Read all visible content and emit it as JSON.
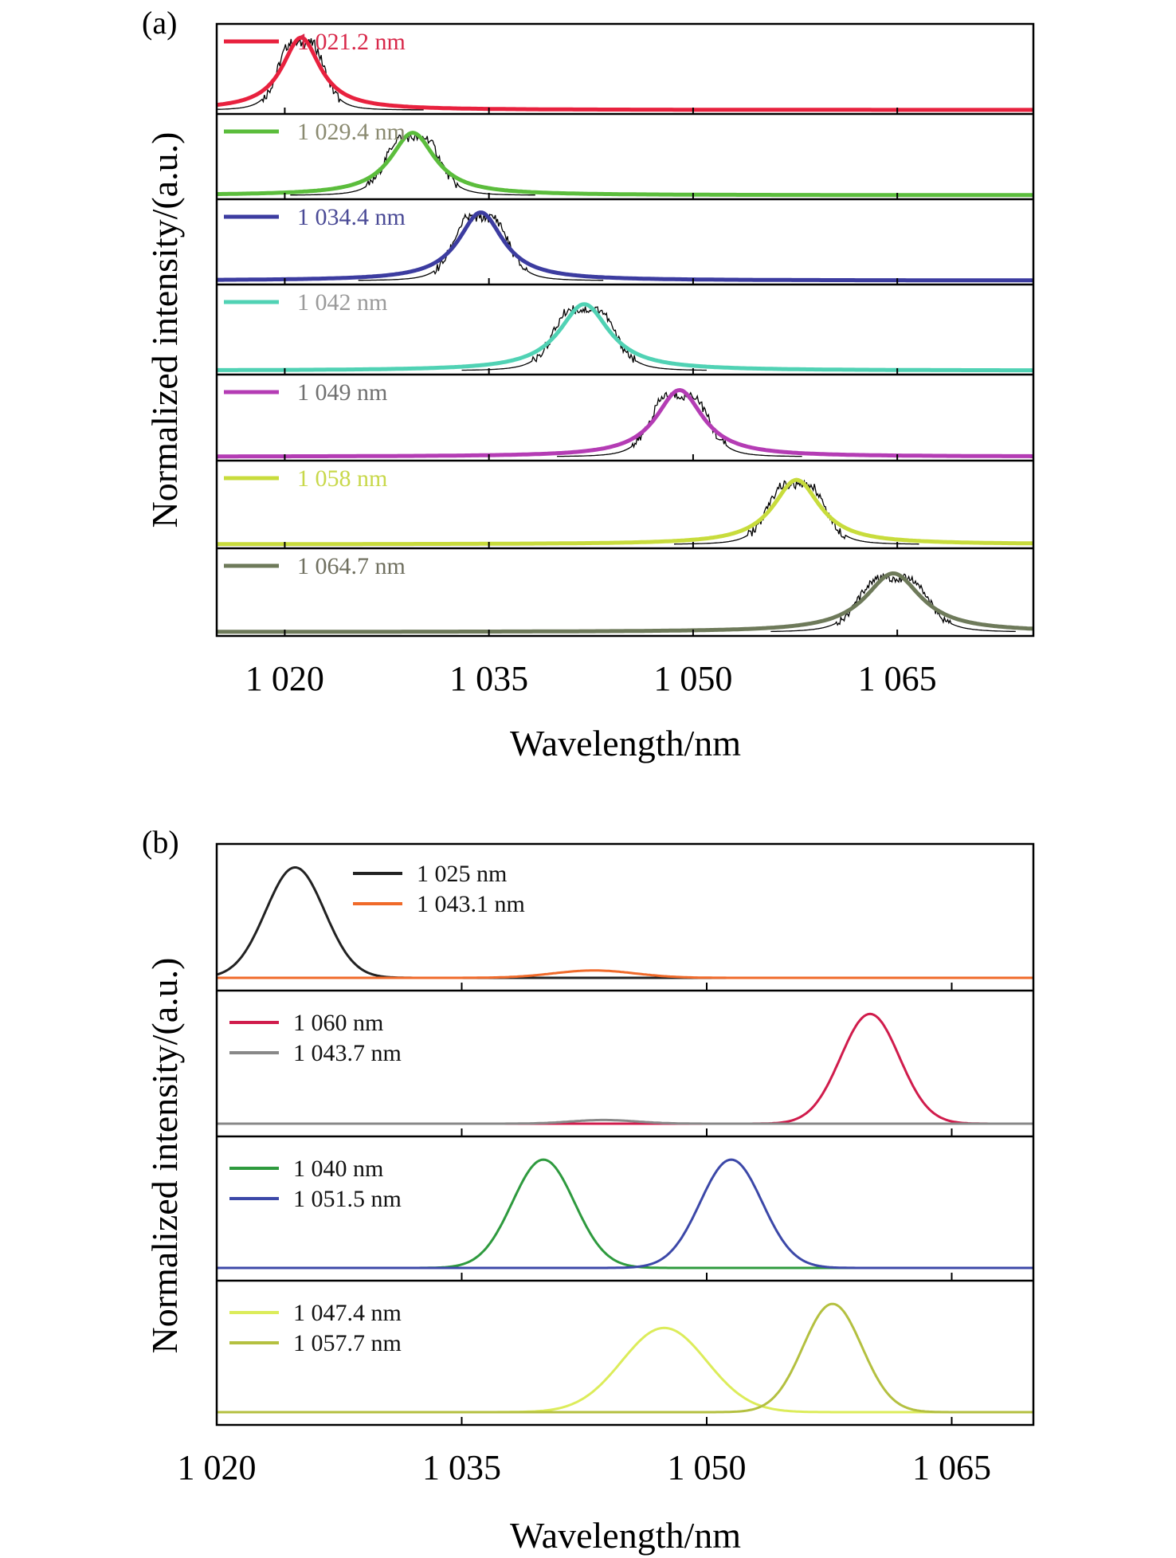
{
  "chart_data": [
    {
      "panel": "(a)",
      "type": "line",
      "xlabel": "Wavelength/nm",
      "ylabel": "Normalized intensity/(a.u.)",
      "xlim": [
        1015,
        1075
      ],
      "xticks": [
        1020,
        1035,
        1050,
        1065
      ],
      "xtick_labels": [
        "1 020",
        "1 035",
        "1 050",
        "1 065"
      ],
      "grid": false,
      "legend_position": "top-left of each strip",
      "measured_trace_color": "#000000",
      "series": [
        {
          "name": "1 021.2 nm",
          "peak": 1021.2,
          "fwhm": 3.4,
          "amplitude": 0.6,
          "color": "#e8213e",
          "text_color": "#d8284a"
        },
        {
          "name": "1 029.4 nm",
          "peak": 1029.4,
          "fwhm": 4.0,
          "amplitude": 0.55,
          "color": "#5bbd3c",
          "text_color": "#8a8a70"
        },
        {
          "name": "1 034.4 nm",
          "peak": 1034.4,
          "fwhm": 4.0,
          "amplitude": 0.6,
          "color": "#3c3ca0",
          "text_color": "#4a4a96"
        },
        {
          "name": "1 042 nm",
          "peak": 1042.0,
          "fwhm": 4.5,
          "amplitude": 0.55,
          "color": "#50d2b4",
          "text_color": "#9a9a9a"
        },
        {
          "name": "1 049 nm",
          "peak": 1049.0,
          "fwhm": 4.2,
          "amplitude": 0.58,
          "color": "#b43cb4",
          "text_color": "#707070"
        },
        {
          "name": "1 058 nm",
          "peak": 1057.6,
          "fwhm": 4.2,
          "amplitude": 0.55,
          "color": "#c8dc3c",
          "text_color": "#c8d84a"
        },
        {
          "name": "1 064.7 nm",
          "peak": 1064.7,
          "fwhm": 5.0,
          "amplitude": 0.5,
          "color": "#6e7a5a",
          "text_color": "#707060"
        }
      ]
    },
    {
      "panel": "(b)",
      "type": "line",
      "xlabel": "Wavelength/nm",
      "ylabel": "Normalized intensity/(a.u.)",
      "xlim": [
        1020,
        1070
      ],
      "xticks": [
        1020,
        1035,
        1050,
        1065
      ],
      "xtick_labels": [
        "1 020",
        "1 035",
        "1 050",
        "1 065"
      ],
      "grid": false,
      "legend_position": "top-left of each strip",
      "groups": [
        {
          "series": [
            {
              "name": "1 025 nm",
              "peak": 1024.8,
              "sigma": 1.8,
              "amplitude": 0.9,
              "color": "#222222"
            },
            {
              "name": "1 043.1 nm",
              "peak": 1043.1,
              "sigma": 2.5,
              "amplitude": 0.06,
              "color": "#f06a2a"
            }
          ]
        },
        {
          "series": [
            {
              "name": "1 060 nm",
              "peak": 1060.0,
              "sigma": 1.8,
              "amplitude": 0.9,
              "color": "#d01c4c"
            },
            {
              "name": "1 043.7 nm",
              "peak": 1043.7,
              "sigma": 2.0,
              "amplitude": 0.03,
              "color": "#888888"
            }
          ]
        },
        {
          "series": [
            {
              "name": "1 040 nm",
              "peak": 1040.0,
              "sigma": 1.9,
              "amplitude": 0.9,
              "color": "#2e9a3e"
            },
            {
              "name": "1 051.5 nm",
              "peak": 1051.5,
              "sigma": 1.9,
              "amplitude": 0.9,
              "color": "#3c48a8"
            }
          ]
        },
        {
          "series": [
            {
              "name": "1 047.4 nm",
              "peak": 1047.4,
              "sigma": 2.6,
              "amplitude": 0.7,
              "color": "#dcec5a"
            },
            {
              "name": "1 057.7 nm",
              "peak": 1057.7,
              "sigma": 1.8,
              "amplitude": 0.9,
              "color": "#b4c040"
            }
          ]
        }
      ]
    }
  ]
}
